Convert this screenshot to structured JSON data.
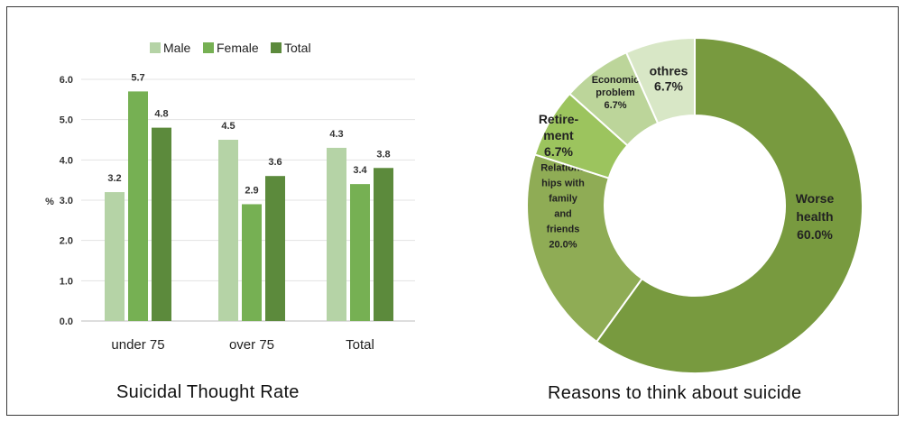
{
  "chart_data": [
    {
      "type": "bar",
      "title": "Suicidal Thought Rate",
      "ylabel": "%",
      "ylim": [
        0,
        6
      ],
      "yticks": [
        "0.0",
        "1.0",
        "2.0",
        "3.0",
        "4.0",
        "5.0",
        "6.0"
      ],
      "categories": [
        "under 75",
        "over 75",
        "Total"
      ],
      "series": [
        {
          "name": "Male",
          "color": "#b5d3a6",
          "values": [
            3.2,
            4.5,
            4.3
          ],
          "labels": [
            "3.2",
            "4.5",
            "4.3"
          ]
        },
        {
          "name": "Female",
          "color": "#76b053",
          "values": [
            5.7,
            2.9,
            3.4
          ],
          "labels": [
            "5.7",
            "2.9",
            "3.4"
          ]
        },
        {
          "name": "Total",
          "color": "#5c8a3c",
          "values": [
            4.8,
            3.6,
            3.8
          ],
          "labels": [
            "4.8",
            "3.6",
            "3.8"
          ]
        }
      ],
      "legend": "top",
      "grid": true
    },
    {
      "type": "pie",
      "variant": "donut",
      "title": "Reasons to think about suicide",
      "slices": [
        {
          "label": "Worse health",
          "value": 60.0,
          "color": "#789a3f",
          "text_lines": [
            "Worse",
            "health",
            "60.0%"
          ]
        },
        {
          "label": "Relationships with family and friends",
          "value": 20.0,
          "color": "#8fac55",
          "text_lines": [
            "Relations",
            "hips with",
            "family",
            "and",
            "friends",
            "20.0%"
          ]
        },
        {
          "label": "Retirement",
          "value": 6.7,
          "color": "#9cc45e",
          "text_lines": [
            "Retire-",
            "ment",
            "6.7%"
          ]
        },
        {
          "label": "Economic problem",
          "value": 6.7,
          "color": "#bcd59a",
          "text_lines": [
            "Economic",
            "problem",
            "6.7%"
          ]
        },
        {
          "label": "othres",
          "value": 6.7,
          "color": "#d8e7c6",
          "text_lines": [
            "othres",
            "6.7%"
          ]
        }
      ]
    }
  ],
  "captions": {
    "left": "Suicidal Thought Rate",
    "right": "Reasons to think about suicide"
  }
}
